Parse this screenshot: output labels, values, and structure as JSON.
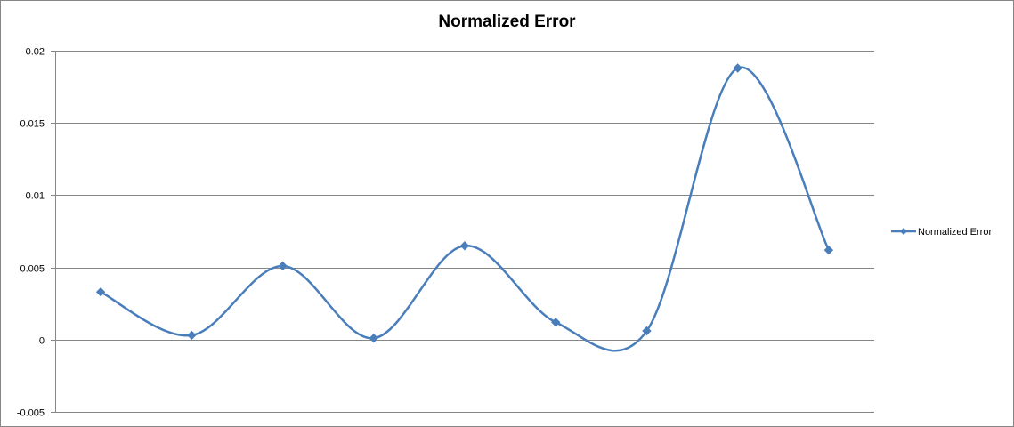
{
  "chart_data": {
    "type": "line",
    "title": "Normalized Error",
    "xlabel": "",
    "ylabel": "",
    "ylim": [
      -0.005,
      0.02
    ],
    "yticks": [
      "-0.005",
      "0",
      "0.005",
      "0.01",
      "0.015",
      "0.02"
    ],
    "ytick_values": [
      -0.005,
      0,
      0.005,
      0.01,
      0.015,
      0.02
    ],
    "grid": true,
    "smooth": true,
    "legend_position": "right",
    "series": [
      {
        "name": "Normalized Error",
        "color": "#4a7ebb",
        "marker": "diamond",
        "values": [
          0.0033,
          0.0003,
          0.0051,
          0.0001,
          0.0065,
          0.0012,
          0.0006,
          0.0188,
          0.0062
        ]
      }
    ]
  }
}
